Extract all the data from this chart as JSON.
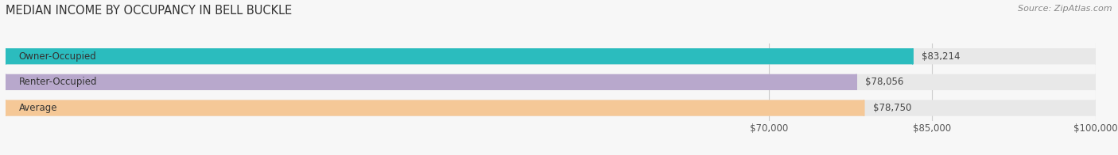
{
  "title": "MEDIAN INCOME BY OCCUPANCY IN BELL BUCKLE",
  "source": "Source: ZipAtlas.com",
  "categories": [
    "Owner-Occupied",
    "Renter-Occupied",
    "Average"
  ],
  "values": [
    83214,
    78056,
    78750
  ],
  "bar_colors": [
    "#2bbcbe",
    "#b8a8cc",
    "#f5c897"
  ],
  "track_color": "#e8e8e8",
  "xmin": 0,
  "xmax": 100000,
  "xticks": [
    70000,
    85000,
    100000
  ],
  "xtick_labels": [
    "$70,000",
    "$85,000",
    "$100,000"
  ],
  "value_labels": [
    "$83,214",
    "$78,056",
    "$78,750"
  ],
  "bar_height": 0.62,
  "background_color": "#f7f7f7",
  "title_fontsize": 10.5,
  "tick_fontsize": 8.5,
  "bar_label_fontsize": 8.5,
  "category_fontsize": 8.5
}
